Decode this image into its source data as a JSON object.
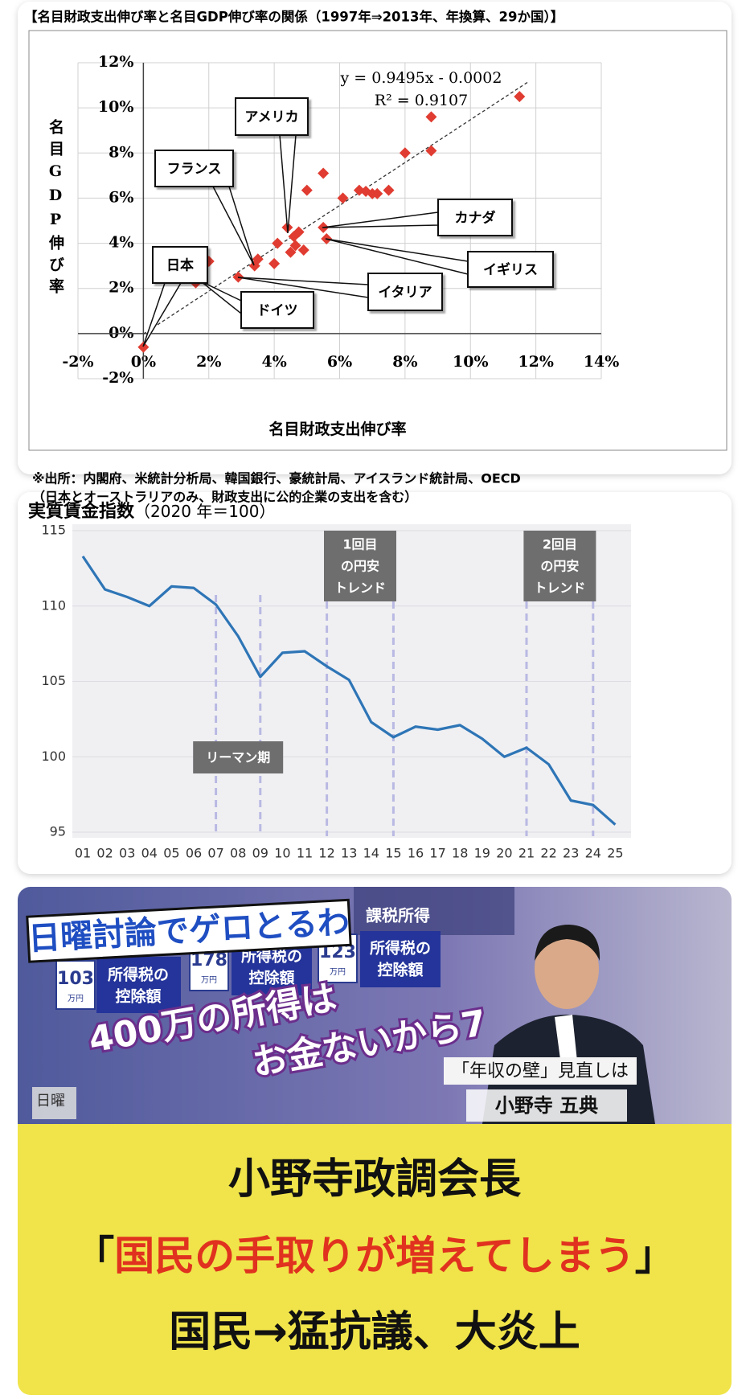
{
  "chart_data": [
    {
      "type": "scatter",
      "title": "【名目財政支出伸び率と名目GDP伸び率の関係（1997年⇒2013年、年換算、29か国）】",
      "x_label": "名目財政支出伸び率",
      "y_label": "名目GDP伸び率",
      "x": [
        0,
        1.6,
        1.7,
        2.0,
        2.9,
        3.4,
        3.5,
        4.0,
        4.1,
        4.4,
        4.5,
        4.6,
        4.65,
        4.75,
        4.9,
        5.0,
        5.5,
        5.5,
        5.6,
        6.1,
        6.6,
        6.8,
        7.0,
        7.15,
        7.5,
        8.0,
        8.8,
        8.8,
        11.5
      ],
      "values": [
        -0.6,
        2.25,
        2.6,
        3.2,
        2.5,
        3.0,
        3.3,
        3.1,
        4.0,
        4.7,
        3.6,
        4.3,
        3.9,
        4.5,
        3.7,
        6.35,
        7.1,
        4.7,
        4.2,
        6.0,
        6.35,
        6.3,
        6.2,
        6.2,
        6.35,
        8.0,
        8.1,
        9.6,
        10.5
      ],
      "color": "#e03c31",
      "xlim": [
        -2,
        14
      ],
      "xticks": [
        {
          "value": -2,
          "label": "-2%"
        },
        {
          "value": 0,
          "label": "0%"
        },
        {
          "value": 2,
          "label": "2%"
        },
        {
          "value": 4,
          "label": "4%"
        },
        {
          "value": 6,
          "label": "6%"
        },
        {
          "value": 8,
          "label": "8%"
        },
        {
          "value": 10,
          "label": "10%"
        },
        {
          "value": 12,
          "label": "12%"
        },
        {
          "value": 14,
          "label": "14%"
        }
      ],
      "ylim": [
        -2,
        12
      ],
      "yticks": [
        {
          "value": -2,
          "label": "-2%"
        },
        {
          "value": 0,
          "label": "0%"
        },
        {
          "value": 2,
          "label": "2%"
        },
        {
          "value": 4,
          "label": "4%"
        },
        {
          "value": 6,
          "label": "6%"
        },
        {
          "value": 8,
          "label": "8%"
        },
        {
          "value": 10,
          "label": "10%"
        },
        {
          "value": 12,
          "label": "12%"
        }
      ],
      "grid": true,
      "trendline": {
        "slope": 0.9495,
        "intercept": -0.0002
      },
      "trendline_labels": [
        "y = 0.9495x - 0.0002",
        "R² = 0.9107"
      ],
      "annotations": [
        "アメリカ",
        "フランス",
        "カナダ",
        "イギリス",
        "イタリア",
        "ドイツ",
        "日本"
      ]
    },
    {
      "type": "line",
      "title": "実質賃金指数",
      "subtitle": "（2020 年＝100）",
      "categories": [
        "01",
        "02",
        "03",
        "04",
        "05",
        "06",
        "07",
        "08",
        "09",
        "10",
        "11",
        "12",
        "13",
        "14",
        "15",
        "16",
        "17",
        "18",
        "19",
        "20",
        "21",
        "22",
        "23",
        "24",
        "25"
      ],
      "values": [
        113.3,
        111.1,
        110.6,
        110.0,
        111.3,
        111.2,
        110.1,
        108.0,
        105.3,
        106.9,
        107.0,
        106.0,
        105.1,
        102.3,
        101.3,
        102.0,
        101.8,
        102.1,
        101.2,
        100.0,
        100.6,
        99.5,
        97.1,
        96.8,
        95.5
      ],
      "color": "#2e75b6",
      "ylim": [
        95,
        115
      ],
      "yticks": [
        95,
        100,
        105,
        110,
        115
      ],
      "grid": true,
      "periods": [
        {
          "label": [
            "リーマン期"
          ],
          "start": "07",
          "end": "09"
        },
        {
          "label": [
            "1回目",
            "の円安",
            "トレンド"
          ],
          "start": "12",
          "end": "15"
        },
        {
          "label": [
            "2回目",
            "の円安",
            "トレンド"
          ],
          "start": "21",
          "end": "24"
        }
      ]
    }
  ],
  "source_notes": [
    "※出所：内閣府、米統計分析局、韓国銀行、豪統計局、アイスランド統計局、OECD",
    "（日本とオーストラリアのみ、財政支出に公的企業の支出を含む）"
  ],
  "image_panel": {
    "overlay_title": "日曜討論でゲロとるわ",
    "background_label": "課税所得",
    "tax_boxes": [
      {
        "amount": "103",
        "unit": "万円",
        "label": [
          "所得税の",
          "控除額"
        ]
      },
      {
        "amount": "178",
        "unit": "万円",
        "label": [
          "所得税の",
          "控除額"
        ]
      },
      {
        "amount": "123",
        "unit": "万円",
        "label": [
          "所得税の",
          "控除額"
        ]
      }
    ],
    "speech": [
      "400万の所得は",
      "お金ないから7"
    ],
    "caption": "「年収の壁」見直しは",
    "speaker": "小野寺 五典",
    "logo": "日曜",
    "headline": {
      "line1": "小野寺政調会長",
      "line2": {
        "open": "「",
        "text": "国民の手取りが増えてしまう",
        "close": "」"
      },
      "line3": "国民→猛抗議、大炎上"
    }
  }
}
